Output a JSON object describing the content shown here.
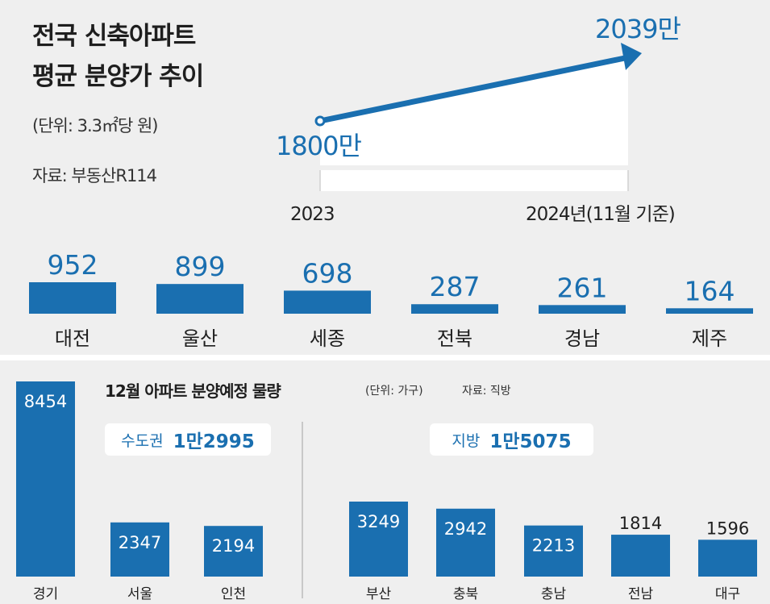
{
  "top": {
    "title_line1": "전국 신축아파트",
    "title_line2": "평균 분양가 추이",
    "unit": "(단위: 3.3㎡당 원)",
    "source": "자료: 부동산R114"
  },
  "chart_data": [
    {
      "type": "line",
      "x": [
        "2023",
        "2024년(11월 기준)"
      ],
      "value_labels": [
        "1800만",
        "2039만"
      ],
      "series": [
        {
          "values": [
            1800,
            2039
          ]
        }
      ]
    },
    {
      "type": "bar",
      "categories": [
        "대전",
        "울산",
        "세종",
        "전북",
        "경남",
        "제주"
      ],
      "values": [
        952,
        899,
        698,
        287,
        261,
        164
      ]
    },
    {
      "type": "bar",
      "title": "12월 아파트 분양예정 물량",
      "unit": "(단위: 가구)",
      "source": "자료: 직방",
      "groups": [
        {
          "label": "수도권",
          "total": "1만2995",
          "categories": [
            "경기",
            "서울",
            "인천"
          ],
          "values": [
            8454,
            2347,
            2194
          ]
        },
        {
          "label": "지방",
          "total": "1만5075",
          "categories": [
            "부산",
            "충북",
            "충남",
            "전남",
            "대구"
          ],
          "values": [
            3249,
            2942,
            2213,
            1814,
            1596
          ]
        }
      ]
    }
  ],
  "colors": {
    "bar": "#1a6fb0",
    "value": "#1a6fb0",
    "panel": "#efefef"
  }
}
